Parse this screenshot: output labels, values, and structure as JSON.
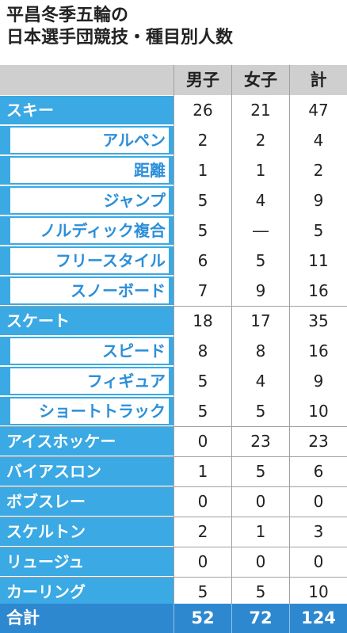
{
  "title": {
    "line1": "平昌冬季五輪の",
    "line2": "日本選手団競技・種目別人数"
  },
  "columns": [
    "男子",
    "女子",
    "計"
  ],
  "rows": [
    {
      "label": "スキー",
      "level": "top",
      "men": "26",
      "women": "21",
      "total": "47"
    },
    {
      "label": "アルペン",
      "level": "sub",
      "men": "2",
      "women": "2",
      "total": "4"
    },
    {
      "label": "距離",
      "level": "sub",
      "men": "1",
      "women": "1",
      "total": "2"
    },
    {
      "label": "ジャンプ",
      "level": "sub",
      "men": "5",
      "women": "4",
      "total": "9"
    },
    {
      "label": "ノルディック複合",
      "level": "sub",
      "men": "5",
      "women": "―",
      "total": "5"
    },
    {
      "label": "フリースタイル",
      "level": "sub",
      "men": "6",
      "women": "5",
      "total": "11"
    },
    {
      "label": "スノーボード",
      "level": "sub",
      "men": "7",
      "women": "9",
      "total": "16"
    },
    {
      "label": "スケート",
      "level": "top",
      "men": "18",
      "women": "17",
      "total": "35"
    },
    {
      "label": "スピード",
      "level": "sub",
      "men": "8",
      "women": "8",
      "total": "16"
    },
    {
      "label": "フィギュア",
      "level": "sub",
      "men": "5",
      "women": "4",
      "total": "9"
    },
    {
      "label": "ショートトラック",
      "level": "sub",
      "men": "5",
      "women": "5",
      "total": "10"
    },
    {
      "label": "アイスホッケー",
      "level": "top",
      "men": "0",
      "women": "23",
      "total": "23"
    },
    {
      "label": "バイアスロン",
      "level": "top",
      "men": "1",
      "women": "5",
      "total": "6"
    },
    {
      "label": "ボブスレー",
      "level": "top",
      "men": "0",
      "women": "0",
      "total": "0"
    },
    {
      "label": "スケルトン",
      "level": "top",
      "men": "2",
      "women": "1",
      "total": "3"
    },
    {
      "label": "リュージュ",
      "level": "top",
      "men": "0",
      "women": "0",
      "total": "0"
    },
    {
      "label": "カーリング",
      "level": "top",
      "men": "5",
      "women": "5",
      "total": "10"
    }
  ],
  "total": {
    "label": "合計",
    "men": "52",
    "women": "72",
    "total": "124"
  },
  "colors": {
    "label_bg": "#3aa9e4",
    "sub_text": "#2b8fd9",
    "total_bg": "#2e88cf",
    "header_bg": "#cfcfcf"
  }
}
